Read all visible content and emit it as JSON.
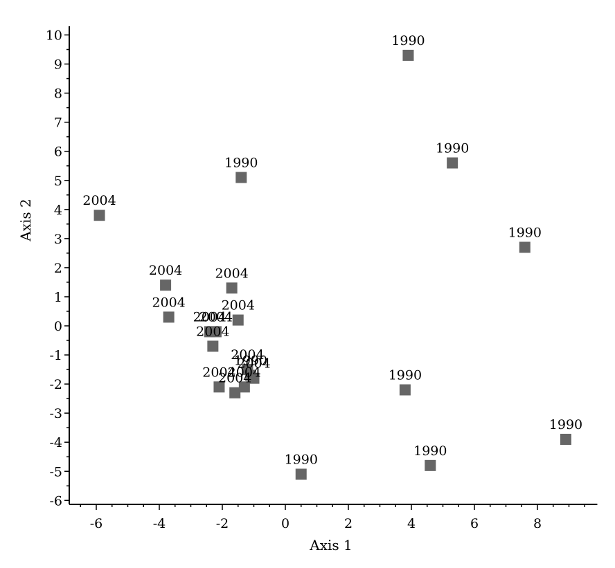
{
  "chart_data": {
    "type": "scatter",
    "title": "",
    "xlabel": "Axis 1",
    "ylabel": "Axis 2",
    "xlim": [
      -6.9,
      9.9
    ],
    "ylim": [
      -6.1,
      10.3
    ],
    "x_ticks": [
      -6,
      -4,
      -2,
      0,
      2,
      4,
      6,
      8
    ],
    "y_ticks": [
      -6,
      -5,
      -4,
      -3,
      -2,
      -1,
      0,
      1,
      2,
      3,
      4,
      5,
      6,
      7,
      8,
      9,
      10
    ],
    "grid": false,
    "marker_color": "#666666",
    "points": [
      {
        "label": "1990",
        "x": 3.9,
        "y": 9.3
      },
      {
        "label": "1990",
        "x": 5.3,
        "y": 5.6
      },
      {
        "label": "1990",
        "x": -1.4,
        "y": 5.1
      },
      {
        "label": "1990",
        "x": 7.6,
        "y": 2.7
      },
      {
        "label": "1990",
        "x": 3.8,
        "y": -2.2
      },
      {
        "label": "1990",
        "x": 8.9,
        "y": -3.9
      },
      {
        "label": "1990",
        "x": 4.6,
        "y": -4.8
      },
      {
        "label": "1990",
        "x": 0.5,
        "y": -5.1
      },
      {
        "label": "2004",
        "x": -5.9,
        "y": 3.8
      },
      {
        "label": "2004",
        "x": -3.8,
        "y": 1.4
      },
      {
        "label": "2004",
        "x": -1.7,
        "y": 1.3
      },
      {
        "label": "2004",
        "x": -3.7,
        "y": 0.3
      },
      {
        "label": "2004",
        "x": -1.5,
        "y": 0.2
      },
      {
        "label": "2004",
        "x": -2.4,
        "y": -0.2
      },
      {
        "label": "2004",
        "x": -2.2,
        "y": -0.2
      },
      {
        "label": "2004",
        "x": -2.3,
        "y": -0.7
      },
      {
        "label": "2004",
        "x": -1.2,
        "y": -1.5
      },
      {
        "label": "1990",
        "x": -1.1,
        "y": -1.7
      },
      {
        "label": "2004",
        "x": -1.0,
        "y": -1.8
      },
      {
        "label": "2004",
        "x": -2.1,
        "y": -2.1
      },
      {
        "label": "2004",
        "x": -1.3,
        "y": -2.1
      },
      {
        "label": "2004",
        "x": -1.6,
        "y": -2.3
      }
    ]
  }
}
